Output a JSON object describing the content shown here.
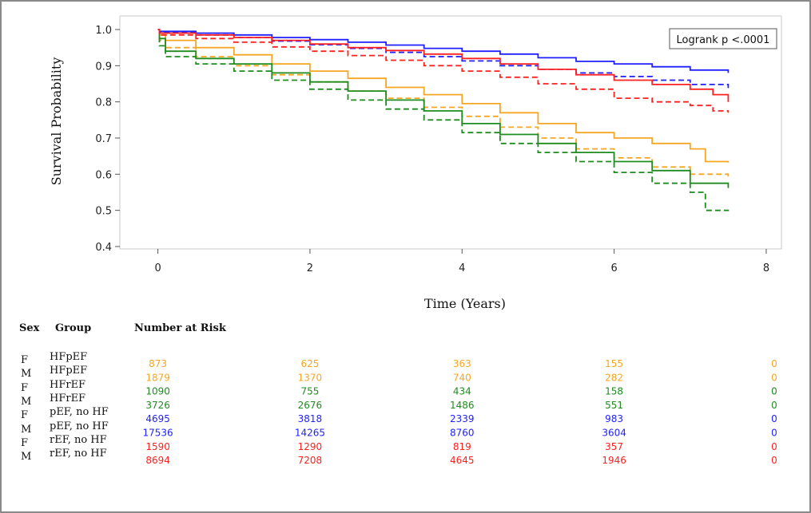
{
  "chart_data": {
    "type": "line",
    "xlabel": "Time (Years)",
    "ylabel": "Survival Probability",
    "xlim": [
      -0.5,
      8.2
    ],
    "ylim": [
      0.4,
      1.0
    ],
    "xticks": [
      0,
      2,
      4,
      6,
      8
    ],
    "yticks": [
      0.4,
      0.5,
      0.6,
      0.7,
      0.8,
      0.9,
      1.0
    ],
    "grid": false,
    "annotation": "Logrank p <.0001",
    "series": [
      {
        "sex": "F",
        "group": "HFpEF",
        "color": "#f5a623",
        "dash": "solid",
        "x": [
          0,
          0.02,
          0.1,
          0.5,
          1,
          1.5,
          2,
          2.5,
          3,
          3.5,
          4,
          4.5,
          5,
          5.5,
          6,
          6.5,
          7,
          7.2,
          7.5
        ],
        "y": [
          1.0,
          0.985,
          0.97,
          0.95,
          0.93,
          0.905,
          0.885,
          0.865,
          0.84,
          0.82,
          0.795,
          0.77,
          0.74,
          0.715,
          0.7,
          0.685,
          0.67,
          0.635,
          0.632
        ]
      },
      {
        "sex": "M",
        "group": "HFpEF",
        "color": "#f5a623",
        "dash": "dashed",
        "x": [
          0,
          0.02,
          0.1,
          0.5,
          1,
          1.5,
          2,
          2.5,
          3,
          3.5,
          4,
          4.5,
          5,
          5.5,
          6,
          6.5,
          7,
          7.5
        ],
        "y": [
          1.0,
          0.97,
          0.95,
          0.925,
          0.9,
          0.875,
          0.855,
          0.83,
          0.81,
          0.785,
          0.76,
          0.73,
          0.7,
          0.67,
          0.645,
          0.62,
          0.6,
          0.59
        ]
      },
      {
        "sex": "F",
        "group": "HFrEF",
        "color": "#1e8c1e",
        "dash": "solid",
        "x": [
          0,
          0.02,
          0.1,
          0.5,
          1,
          1.5,
          2,
          2.5,
          3,
          3.5,
          4,
          4.5,
          5,
          5.5,
          6,
          6.5,
          7,
          7.5
        ],
        "y": [
          1.0,
          0.975,
          0.94,
          0.92,
          0.905,
          0.88,
          0.855,
          0.83,
          0.805,
          0.775,
          0.74,
          0.71,
          0.685,
          0.66,
          0.635,
          0.61,
          0.575,
          0.562
        ]
      },
      {
        "sex": "M",
        "group": "HFrEF",
        "color": "#1e8c1e",
        "dash": "dashed",
        "x": [
          0,
          0.02,
          0.1,
          0.5,
          1,
          1.5,
          2,
          2.5,
          3,
          3.5,
          4,
          4.5,
          5,
          5.5,
          6,
          6.5,
          7,
          7.2,
          7.5
        ],
        "y": [
          1.0,
          0.955,
          0.925,
          0.905,
          0.885,
          0.86,
          0.835,
          0.805,
          0.78,
          0.75,
          0.715,
          0.685,
          0.66,
          0.635,
          0.605,
          0.575,
          0.55,
          0.5,
          0.498
        ]
      },
      {
        "sex": "F",
        "group": "pEF, no HF",
        "color": "#1f1fff",
        "dash": "solid",
        "x": [
          0,
          0.02,
          0.5,
          1,
          1.5,
          2,
          2.5,
          3,
          3.5,
          4,
          4.5,
          5,
          5.5,
          6,
          6.5,
          7,
          7.5
        ],
        "y": [
          1.0,
          0.995,
          0.99,
          0.985,
          0.978,
          0.972,
          0.965,
          0.957,
          0.948,
          0.94,
          0.932,
          0.922,
          0.912,
          0.905,
          0.897,
          0.888,
          0.88
        ]
      },
      {
        "sex": "M",
        "group": "pEF, no HF",
        "color": "#1f1fff",
        "dash": "dashed",
        "x": [
          0,
          0.02,
          0.5,
          1,
          1.5,
          2,
          2.5,
          3,
          3.5,
          4,
          4.5,
          5,
          5.5,
          6,
          6.5,
          7,
          7.5
        ],
        "y": [
          1.0,
          0.993,
          0.985,
          0.978,
          0.968,
          0.958,
          0.948,
          0.937,
          0.925,
          0.913,
          0.9,
          0.89,
          0.88,
          0.87,
          0.86,
          0.848,
          0.838
        ]
      },
      {
        "sex": "F",
        "group": "rEF, no HF",
        "color": "#ff2020",
        "dash": "solid",
        "x": [
          0,
          0.02,
          0.5,
          1,
          1.5,
          2,
          2.5,
          3,
          3.5,
          4,
          4.5,
          5,
          5.5,
          6,
          6.5,
          7,
          7.3,
          7.5
        ],
        "y": [
          1.0,
          0.99,
          0.985,
          0.978,
          0.97,
          0.96,
          0.95,
          0.942,
          0.932,
          0.92,
          0.905,
          0.89,
          0.875,
          0.86,
          0.848,
          0.835,
          0.82,
          0.8
        ]
      },
      {
        "sex": "M",
        "group": "rEF, no HF",
        "color": "#ff2020",
        "dash": "dashed",
        "x": [
          0,
          0.02,
          0.5,
          1,
          1.5,
          2,
          2.5,
          3,
          3.5,
          4,
          4.5,
          5,
          5.5,
          6,
          6.5,
          7,
          7.3,
          7.5
        ],
        "y": [
          1.0,
          0.985,
          0.975,
          0.965,
          0.952,
          0.94,
          0.928,
          0.915,
          0.9,
          0.885,
          0.868,
          0.85,
          0.835,
          0.81,
          0.8,
          0.79,
          0.775,
          0.77
        ]
      }
    ],
    "risk_table": {
      "header_sex": "Sex",
      "header_group": "Group",
      "header_number": "Number at Risk",
      "times": [
        0,
        2,
        4,
        6,
        8
      ],
      "rows": [
        {
          "sex": "F",
          "group": "HFpEF",
          "color": "#f5a623",
          "counts": [
            "873",
            "625",
            "363",
            "155",
            "0"
          ]
        },
        {
          "sex": "M",
          "group": "HFpEF",
          "color": "#f5a623",
          "counts": [
            "1879",
            "1370",
            "740",
            "282",
            "0"
          ]
        },
        {
          "sex": "F",
          "group": "HFrEF",
          "color": "#1e8c1e",
          "counts": [
            "1090",
            "755",
            "434",
            "158",
            "0"
          ]
        },
        {
          "sex": "M",
          "group": "HFrEF",
          "color": "#1e8c1e",
          "counts": [
            "3726",
            "2676",
            "1486",
            "551",
            "0"
          ]
        },
        {
          "sex": "F",
          "group": "pEF, no HF",
          "color": "#1f1fff",
          "counts": [
            "4695",
            "3818",
            "2339",
            "983",
            "0"
          ]
        },
        {
          "sex": "M",
          "group": "pEF, no HF",
          "color": "#1f1fff",
          "counts": [
            "17536",
            "14265",
            "8760",
            "3604",
            "0"
          ]
        },
        {
          "sex": "F",
          "group": "rEF, no HF",
          "color": "#ff2020",
          "counts": [
            "1590",
            "1290",
            "819",
            "357",
            "0"
          ]
        },
        {
          "sex": "M",
          "group": "rEF, no HF",
          "color": "#ff2020",
          "counts": [
            "8694",
            "7208",
            "4645",
            "1946",
            "0"
          ]
        }
      ]
    }
  }
}
